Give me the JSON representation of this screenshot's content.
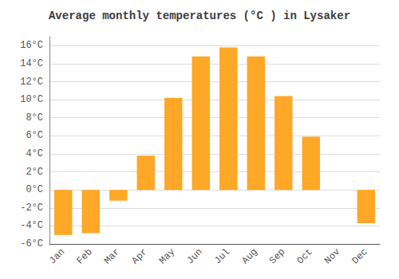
{
  "chart_data": {
    "type": "bar",
    "title": "Average monthly temperatures (°C ) in Lysaker",
    "categories": [
      "Jan",
      "Feb",
      "Mar",
      "Apr",
      "May",
      "Jun",
      "Jul",
      "Aug",
      "Sep",
      "Oct",
      "Nov",
      "Dec"
    ],
    "values": [
      -5.0,
      -4.8,
      -1.2,
      3.8,
      10.2,
      14.8,
      15.8,
      14.8,
      10.4,
      5.9,
      0.0,
      -3.7
    ],
    "color": "#FFA726",
    "ylim": [
      -6,
      17
    ],
    "yticks": [
      {
        "value": -6,
        "label": "-6°C"
      },
      {
        "value": -4,
        "label": "-4°C"
      },
      {
        "value": -2,
        "label": "-2°C"
      },
      {
        "value": 0,
        "label": "0°C"
      },
      {
        "value": 2,
        "label": "2°C"
      },
      {
        "value": 4,
        "label": "4°C"
      },
      {
        "value": 6,
        "label": "6°C"
      },
      {
        "value": 8,
        "label": "8°C"
      },
      {
        "value": 10,
        "label": "10°C"
      },
      {
        "value": 12,
        "label": "12°C"
      },
      {
        "value": 14,
        "label": "14°C"
      },
      {
        "value": 16,
        "label": "16°C"
      }
    ],
    "grid": true
  }
}
